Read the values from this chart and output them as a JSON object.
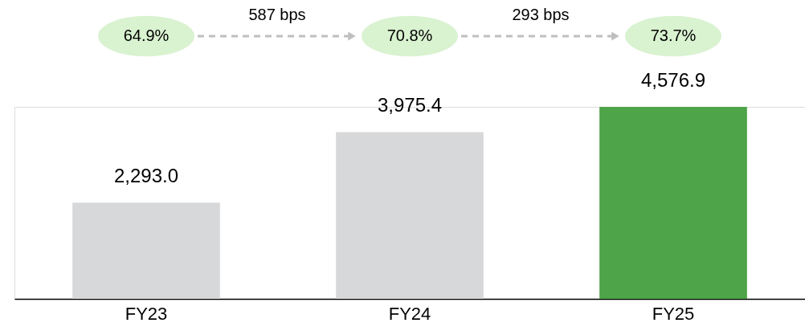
{
  "chart_data": {
    "type": "bar",
    "categories": [
      "FY23",
      "FY24",
      "FY25"
    ],
    "values": [
      2293.0,
      3975.4,
      4576.9
    ],
    "value_labels": [
      "2,293.0",
      "3,975.4",
      "4,576.9"
    ],
    "colors": [
      "#d7d8da",
      "#d7d8da",
      "#4ea449"
    ],
    "annotations": [
      "64.9%",
      "587 bps",
      "70.8%",
      "293 bps",
      "73.7%"
    ]
  }
}
